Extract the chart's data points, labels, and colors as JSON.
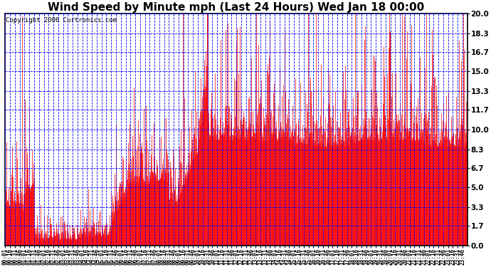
{
  "title": "Wind Speed by Minute mph (Last 24 Hours) Wed Jan 18 00:00",
  "copyright": "Copyright 2006 Curtronics.com",
  "y_ticks": [
    0.0,
    1.7,
    3.3,
    5.0,
    6.7,
    8.3,
    10.0,
    11.7,
    13.3,
    15.0,
    16.7,
    18.3,
    20.0
  ],
  "ymin": 0.0,
  "ymax": 20.0,
  "background_color": "#ffffff",
  "plot_bg_color": "#ffffff",
  "line_color": "#ff0000",
  "grid_color": "#0000ff",
  "title_fontsize": 11,
  "copyright_fontsize": 6.5,
  "x_label_fontsize": 5.5,
  "y_label_fontsize": 7.5,
  "num_minutes": 1440
}
